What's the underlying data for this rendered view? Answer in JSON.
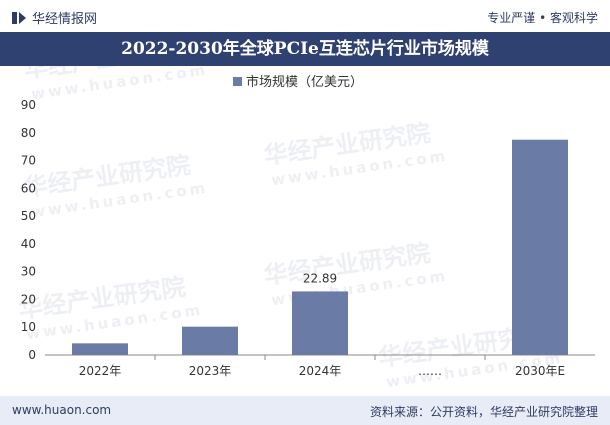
{
  "header": {
    "brand": "华经情报网",
    "tagline": "专业严谨 • 客观科学"
  },
  "title": "2022-2030年全球PCIe互连芯片行业市场规模",
  "watermarks": [
    {
      "text": "华经产业研究院"
    },
    {
      "text": "www.huaon.com"
    }
  ],
  "chart_data": {
    "type": "bar",
    "title": "2022-2030年全球PCIe互连芯片行业市场规模",
    "legend": "市场规模（亿美元）",
    "categories": [
      "2022年",
      "2023年",
      "2024年",
      "……",
      "2030年E"
    ],
    "series": [
      {
        "name": "市场规模（亿美元）",
        "values": [
          4.2,
          10.2,
          22.89,
          null,
          77.5
        ]
      }
    ],
    "data_labels": [
      null,
      null,
      "22.89",
      null,
      null
    ],
    "ylim": [
      0,
      90
    ],
    "yticks": [
      0,
      10,
      20,
      30,
      40,
      50,
      60,
      70,
      80,
      90
    ],
    "bar_color": "#6a7ba6"
  },
  "footer": {
    "site": "www.huaon.com",
    "source": "资料来源：公开资料，华经产业研究院整理"
  }
}
